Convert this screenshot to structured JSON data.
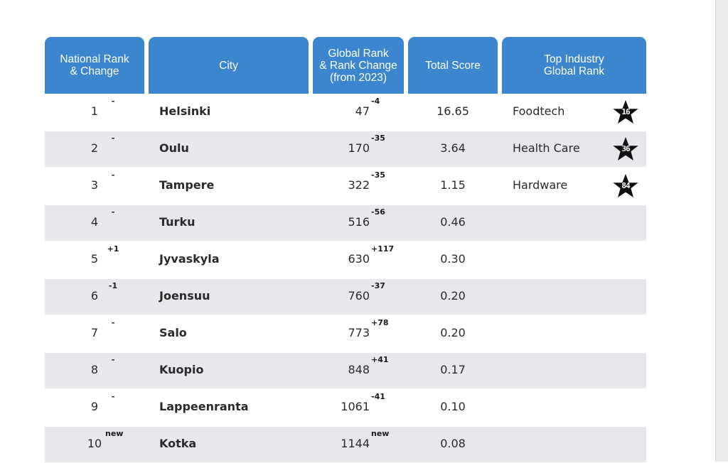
{
  "table": {
    "headers": [
      "National Rank\n& Change",
      "City",
      "Global Rank\n& Rank Change\n(from 2023)",
      "Total Score",
      "Top Industry\nGlobal Rank"
    ],
    "rows": [
      {
        "national_rank": "1",
        "national_change": "-",
        "city": "Helsinki",
        "global_rank": "47",
        "global_change": "-4",
        "total_score": "16.65",
        "industry": "Foodtech",
        "industry_rank": "16"
      },
      {
        "national_rank": "2",
        "national_change": "-",
        "city": "Oulu",
        "global_rank": "170",
        "global_change": "-35",
        "total_score": "3.64",
        "industry": "Health Care",
        "industry_rank": "36"
      },
      {
        "national_rank": "3",
        "national_change": "-",
        "city": "Tampere",
        "global_rank": "322",
        "global_change": "-35",
        "total_score": "1.15",
        "industry": "Hardware",
        "industry_rank": "84"
      },
      {
        "national_rank": "4",
        "national_change": "-",
        "city": "Turku",
        "global_rank": "516",
        "global_change": "-56",
        "total_score": "0.46",
        "industry": "",
        "industry_rank": ""
      },
      {
        "national_rank": "5",
        "national_change": "+1",
        "city": "Jyvaskyla",
        "global_rank": "630",
        "global_change": "+117",
        "total_score": "0.30",
        "industry": "",
        "industry_rank": ""
      },
      {
        "national_rank": "6",
        "national_change": "-1",
        "city": "Joensuu",
        "global_rank": "760",
        "global_change": "-37",
        "total_score": "0.20",
        "industry": "",
        "industry_rank": ""
      },
      {
        "national_rank": "7",
        "national_change": "-",
        "city": "Salo",
        "global_rank": "773",
        "global_change": "+78",
        "total_score": "0.20",
        "industry": "",
        "industry_rank": ""
      },
      {
        "national_rank": "8",
        "national_change": "-",
        "city": "Kuopio",
        "global_rank": "848",
        "global_change": "+41",
        "total_score": "0.17",
        "industry": "",
        "industry_rank": ""
      },
      {
        "national_rank": "9",
        "national_change": "-",
        "city": "Lappeenranta",
        "global_rank": "1061",
        "global_change": "-41",
        "total_score": "0.10",
        "industry": "",
        "industry_rank": ""
      },
      {
        "national_rank": "10",
        "national_change": "new",
        "city": "Kotka",
        "global_rank": "1144",
        "global_change": "new",
        "total_score": "0.08",
        "industry": "",
        "industry_rank": ""
      }
    ]
  },
  "colors": {
    "header_bg": "#3b86cf",
    "header_text": "#ffffff",
    "shaded_row": "#e7e8ec",
    "star": "#111111"
  },
  "icons": {
    "industry_badge": "star-icon"
  }
}
